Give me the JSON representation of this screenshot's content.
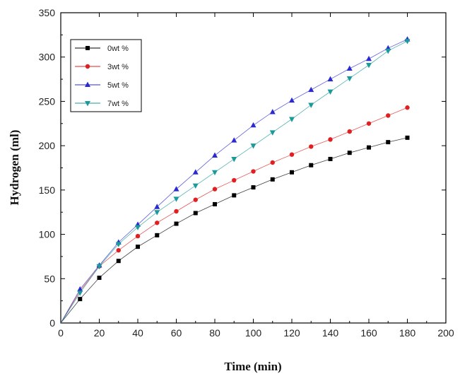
{
  "chart_data": {
    "type": "line",
    "xlabel": "Time (min)",
    "ylabel": "Hydrogen (ml)",
    "xlim": [
      0,
      200
    ],
    "ylim": [
      0,
      350
    ],
    "xticks": [
      0,
      20,
      40,
      60,
      80,
      100,
      120,
      140,
      160,
      180,
      200
    ],
    "yticks": [
      0,
      50,
      100,
      150,
      200,
      250,
      300,
      350
    ],
    "grid": false,
    "legend_position": "top-left",
    "x": [
      0,
      10,
      20,
      30,
      40,
      50,
      60,
      70,
      80,
      90,
      100,
      110,
      120,
      130,
      140,
      150,
      160,
      170,
      180
    ],
    "series": [
      {
        "name": "0wt %",
        "color": "#000000",
        "marker": "square",
        "values": [
          0,
          27,
          51,
          70,
          86,
          99,
          112,
          124,
          134,
          144,
          153,
          162,
          170,
          178,
          185,
          192,
          198,
          204,
          209
        ]
      },
      {
        "name": "3wt %",
        "color": "#e02020",
        "marker": "circle",
        "values": [
          0,
          36,
          64,
          82,
          98,
          113,
          126,
          139,
          151,
          161,
          171,
          181,
          190,
          199,
          207,
          216,
          225,
          234,
          243
        ]
      },
      {
        "name": "5wt %",
        "color": "#2a2ad0",
        "marker": "triangle-up",
        "values": [
          0,
          38,
          65,
          91,
          111,
          131,
          151,
          170,
          189,
          206,
          223,
          238,
          251,
          263,
          275,
          287,
          298,
          310,
          320
        ]
      },
      {
        "name": "7wt %",
        "color": "#1a9a9a",
        "marker": "triangle-down",
        "values": [
          0,
          34,
          64,
          89,
          108,
          125,
          140,
          155,
          170,
          185,
          200,
          215,
          230,
          246,
          261,
          276,
          291,
          307,
          318
        ]
      }
    ]
  }
}
